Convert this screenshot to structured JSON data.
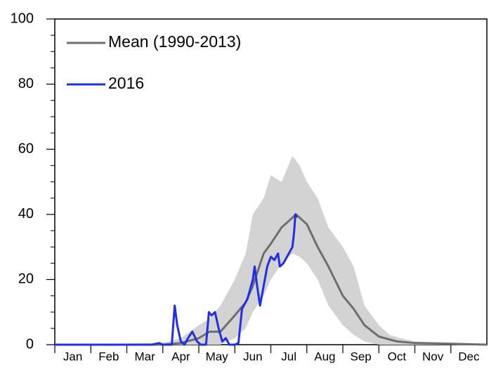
{
  "chart_data": {
    "type": "line",
    "xlim": [
      0,
      12
    ],
    "xticks": [
      {
        "value": 0,
        "label": "Jan"
      },
      {
        "value": 1,
        "label": "Feb"
      },
      {
        "value": 2,
        "label": "Mar"
      },
      {
        "value": 3,
        "label": "Apr"
      },
      {
        "value": 4,
        "label": "May"
      },
      {
        "value": 5,
        "label": "Jun"
      },
      {
        "value": 6,
        "label": "Jul"
      },
      {
        "value": 7,
        "label": "Aug"
      },
      {
        "value": 8,
        "label": "Sep"
      },
      {
        "value": 9,
        "label": "Oct"
      },
      {
        "value": 10,
        "label": "Nov"
      },
      {
        "value": 11,
        "label": "Dec"
      }
    ],
    "ylim": [
      0,
      100
    ],
    "yticks": [
      0,
      20,
      40,
      60,
      80,
      100
    ],
    "legend": "upper left",
    "range": {
      "color": "#d3d3d3",
      "x": [
        0,
        3,
        3.5,
        4,
        4.3,
        4.6,
        5,
        5.3,
        5.5,
        5.8,
        6,
        6.3,
        6.6,
        6.8,
        7,
        7.3,
        7.6,
        8,
        8.3,
        8.6,
        9,
        9.3,
        9.6,
        10,
        11,
        12
      ],
      "lower": [
        0,
        0,
        0,
        0,
        0,
        0,
        2,
        5,
        10,
        15,
        20,
        25,
        28,
        27,
        25,
        20,
        12,
        6,
        3,
        1,
        0,
        0,
        0,
        0,
        0,
        0
      ],
      "upper": [
        0,
        0.5,
        2,
        6,
        8,
        12,
        20,
        28,
        40,
        45,
        52,
        50,
        58,
        55,
        50,
        45,
        36,
        30,
        24,
        12,
        6,
        3,
        2,
        1,
        0.5,
        0
      ]
    },
    "series": [
      {
        "name": "Mean (1990-2013)",
        "color": "#6e6e6e",
        "x": [
          0,
          3,
          3.5,
          4,
          4.3,
          4.6,
          5,
          5.3,
          5.5,
          5.8,
          6,
          6.3,
          6.5,
          6.7,
          6.9,
          7,
          7.3,
          7.6,
          8,
          8.3,
          8.6,
          9,
          9.5,
          10,
          11,
          12
        ],
        "values": [
          0,
          0,
          0.5,
          2,
          4,
          4,
          9,
          13,
          18,
          28,
          31,
          36,
          38,
          40,
          38,
          37,
          30,
          24,
          15,
          11,
          6,
          2.5,
          1,
          0.5,
          0.3,
          0
        ]
      },
      {
        "name": "2016",
        "color": "#1f2ee8",
        "x": [
          0,
          2.7,
          2.9,
          3.0,
          3.25,
          3.33,
          3.4,
          3.5,
          3.6,
          3.7,
          3.82,
          3.95,
          4.05,
          4.2,
          4.28,
          4.35,
          4.45,
          4.55,
          4.65,
          4.75,
          4.85,
          5.0,
          5.1,
          5.2,
          5.35,
          5.5,
          5.55,
          5.62,
          5.7,
          5.8,
          5.9,
          6.0,
          6.1,
          6.2,
          6.25,
          6.35,
          6.45,
          6.55,
          6.6,
          6.65,
          6.68,
          6.72
        ],
        "values": [
          0,
          0,
          0.5,
          0,
          0,
          12,
          6,
          1,
          0,
          2,
          4,
          1,
          0,
          0,
          10,
          9,
          10,
          5,
          1,
          2,
          0,
          0,
          0.5,
          11,
          14,
          20,
          24,
          18,
          12,
          18,
          24,
          27,
          26,
          28,
          24,
          25,
          27,
          29,
          30,
          35,
          40,
          39
        ]
      }
    ]
  }
}
